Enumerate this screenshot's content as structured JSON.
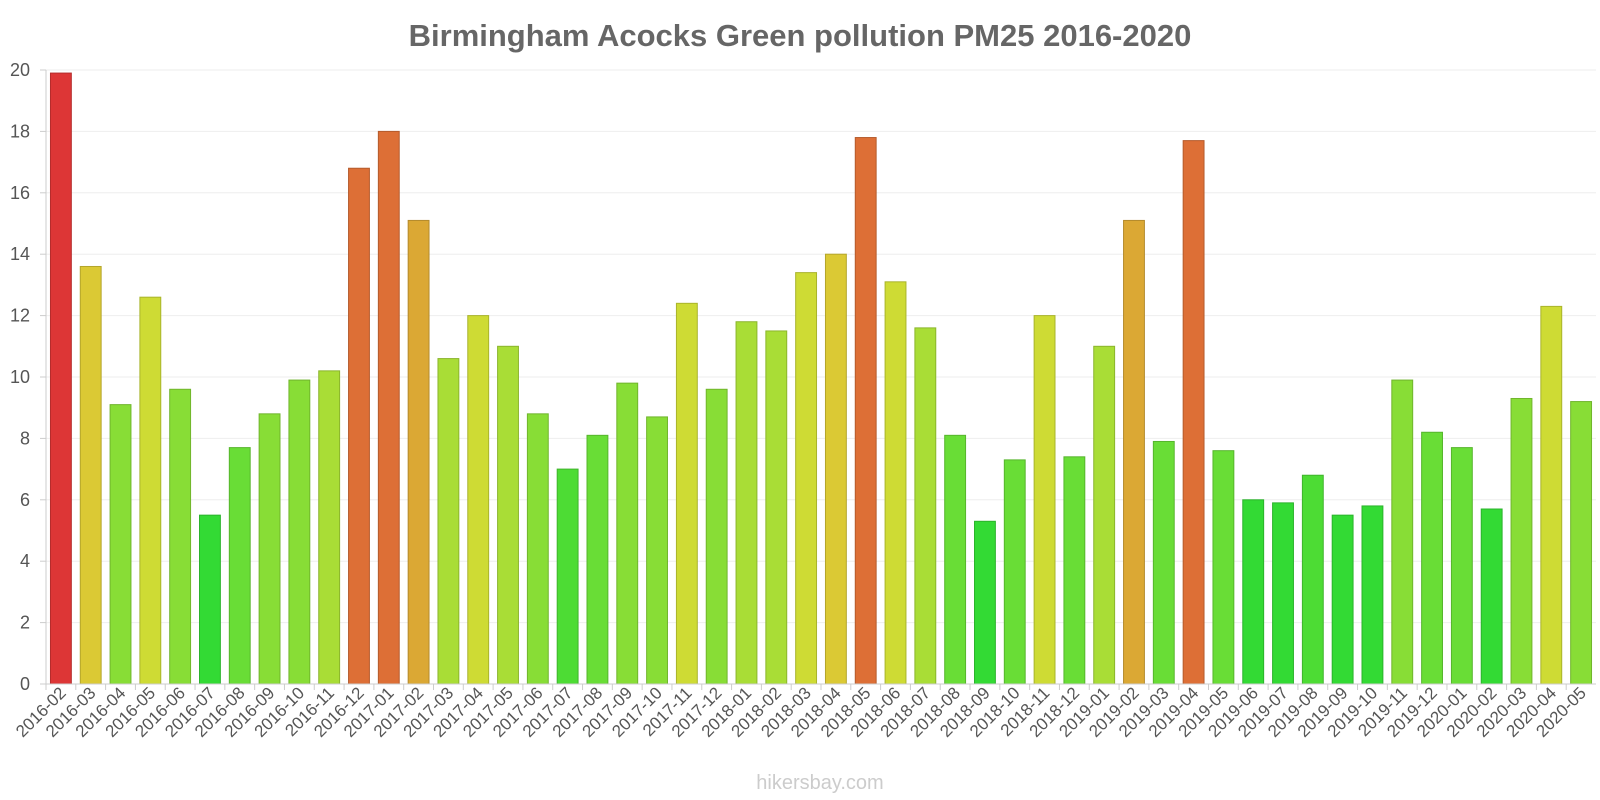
{
  "chart_data": {
    "type": "bar",
    "title": "Birmingham Acocks Green pollution PM25 2016-2020",
    "xlabel": "",
    "ylabel": "",
    "ylim": [
      0,
      20
    ],
    "yticks": [
      0,
      2,
      4,
      6,
      8,
      10,
      12,
      14,
      16,
      18,
      20
    ],
    "grid": true,
    "legend": "none",
    "categories": [
      "2016-02",
      "2016-03",
      "2016-04",
      "2016-05",
      "2016-06",
      "2016-07",
      "2016-08",
      "2016-09",
      "2016-10",
      "2016-11",
      "2016-12",
      "2017-01",
      "2017-02",
      "2017-03",
      "2017-04",
      "2017-05",
      "2017-06",
      "2017-07",
      "2017-08",
      "2017-09",
      "2017-10",
      "2017-11",
      "2017-12",
      "2018-01",
      "2018-02",
      "2018-03",
      "2018-04",
      "2018-05",
      "2018-06",
      "2018-07",
      "2018-08",
      "2018-09",
      "2018-10",
      "2018-11",
      "2018-12",
      "2019-01",
      "2019-02",
      "2019-03",
      "2019-04",
      "2019-05",
      "2019-06",
      "2019-07",
      "2019-08",
      "2019-09",
      "2019-10",
      "2019-11",
      "2019-12",
      "2020-01",
      "2020-02",
      "2020-03",
      "2020-04",
      "2020-05"
    ],
    "values": [
      19.9,
      13.6,
      9.1,
      12.6,
      9.6,
      5.5,
      7.7,
      8.8,
      9.9,
      10.2,
      16.8,
      18.0,
      15.1,
      10.6,
      12.0,
      11.0,
      8.8,
      7.0,
      8.1,
      9.8,
      8.7,
      12.4,
      9.6,
      11.8,
      11.5,
      13.4,
      14.0,
      17.8,
      13.1,
      11.6,
      8.1,
      5.3,
      7.3,
      12.0,
      7.4,
      11.0,
      15.1,
      7.9,
      17.7,
      7.6,
      6.0,
      5.9,
      6.8,
      5.5,
      5.8,
      9.9,
      8.2,
      7.7,
      5.7,
      9.3,
      12.3,
      9.2
    ],
    "colors": [
      "#dd3636",
      "#dbc934",
      "#88dd36",
      "#cedb34",
      "#88dd36",
      "#33da34",
      "#69dd36",
      "#88dd36",
      "#88dd36",
      "#a9dd36",
      "#dd6f36",
      "#dd6f36",
      "#dba834",
      "#a9dd36",
      "#cedb34",
      "#a9dd36",
      "#88dd36",
      "#4ddc34",
      "#69dd36",
      "#88dd36",
      "#88dd36",
      "#cedb34",
      "#88dd36",
      "#a9dd36",
      "#a9dd36",
      "#cedb34",
      "#dbc934",
      "#dd6f36",
      "#cedb34",
      "#a9dd36",
      "#69dd36",
      "#33da34",
      "#69dd36",
      "#cedb34",
      "#69dd36",
      "#a9dd36",
      "#dba834",
      "#69dd36",
      "#dd6f36",
      "#69dd36",
      "#33da34",
      "#33da34",
      "#4ddc34",
      "#33da34",
      "#33da34",
      "#88dd36",
      "#69dd36",
      "#69dd36",
      "#33da34",
      "#88dd36",
      "#cedb34",
      "#88dd36"
    ]
  },
  "footer": {
    "watermark": "hikersbay.com"
  }
}
